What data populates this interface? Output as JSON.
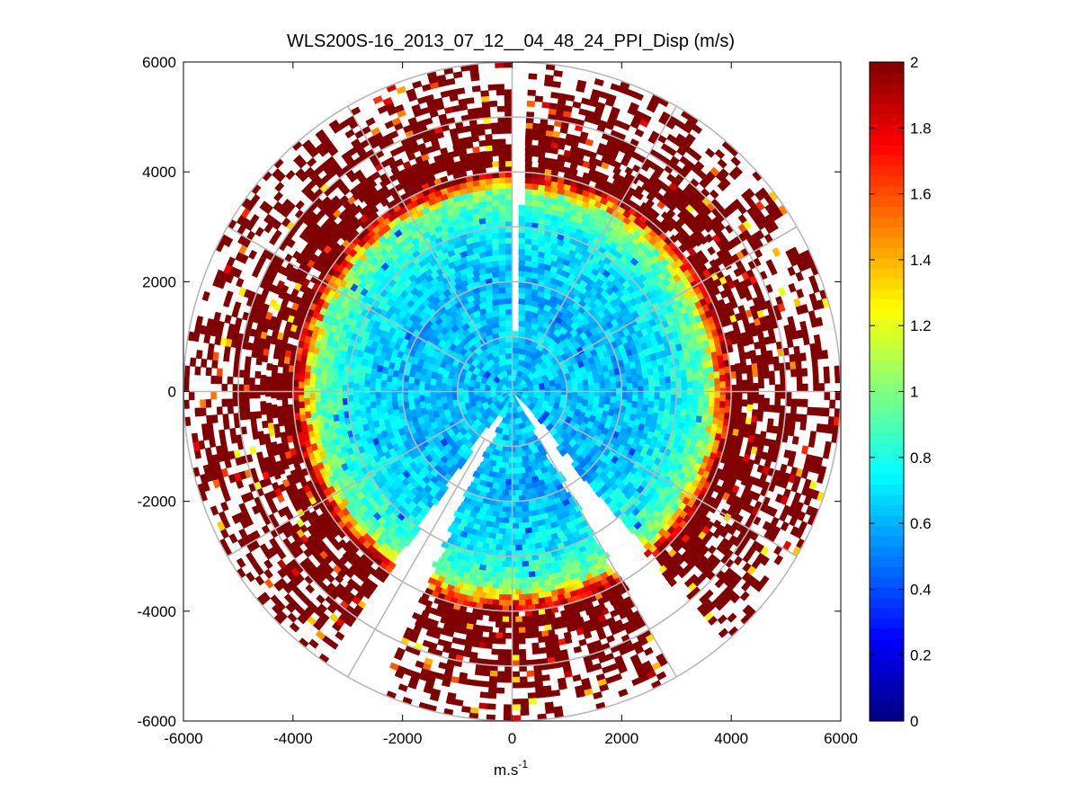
{
  "chart_data": {
    "type": "heatmap",
    "subtype": "polar-ppi",
    "title": "WLS200S-16_2013_07_12__04_48_24_PPI_Disp (m/s)",
    "xlabel": {
      "base": "m.s",
      "sup": "-1"
    },
    "ylabel": "",
    "xlim": [
      -6000,
      6000
    ],
    "ylim": [
      -6000,
      6000
    ],
    "x_ticks": [
      -6000,
      -4000,
      -2000,
      0,
      2000,
      4000,
      6000
    ],
    "y_ticks": [
      -6000,
      -4000,
      -2000,
      0,
      2000,
      4000,
      6000
    ],
    "x_tick_labels": [
      "-6000",
      "-4000",
      "-2000",
      "0",
      "2000",
      "4000",
      "6000"
    ],
    "y_tick_labels": [
      "-6000",
      "-4000",
      "-2000",
      "0",
      "2000",
      "4000",
      "6000"
    ],
    "range_rings": [
      1000,
      2000,
      3000,
      4000,
      5000,
      6000
    ],
    "spokes_deg": [
      0,
      30,
      60,
      90,
      120,
      150,
      180,
      210,
      240,
      270,
      300,
      330
    ],
    "colorbar": {
      "colormap": "jet",
      "clim": [
        0,
        2
      ],
      "ticks": [
        0,
        0.2,
        0.4,
        0.6,
        0.8,
        1,
        1.2,
        1.4,
        1.6,
        1.8,
        2
      ],
      "tick_labels": [
        "0",
        "0.2",
        "0.4",
        "0.6",
        "0.8",
        "1",
        "1.2",
        "1.4",
        "1.6",
        "1.8",
        "2"
      ]
    },
    "field_profile": {
      "description": "dispersion vs range: low (~0.6 m/s) near lidar, rising to saturated 2 m/s beyond ~4000 m",
      "range_breaks": [
        0,
        2000,
        3000,
        3600,
        4000,
        6000
      ],
      "values_at_breaks": [
        0.65,
        0.62,
        0.75,
        1.0,
        2.0,
        2.0
      ],
      "max_range": 6000,
      "missing_sectors_deg": [
        [
          0,
          3
        ],
        [
          204,
          214
        ],
        [
          140,
          150
        ]
      ]
    }
  }
}
